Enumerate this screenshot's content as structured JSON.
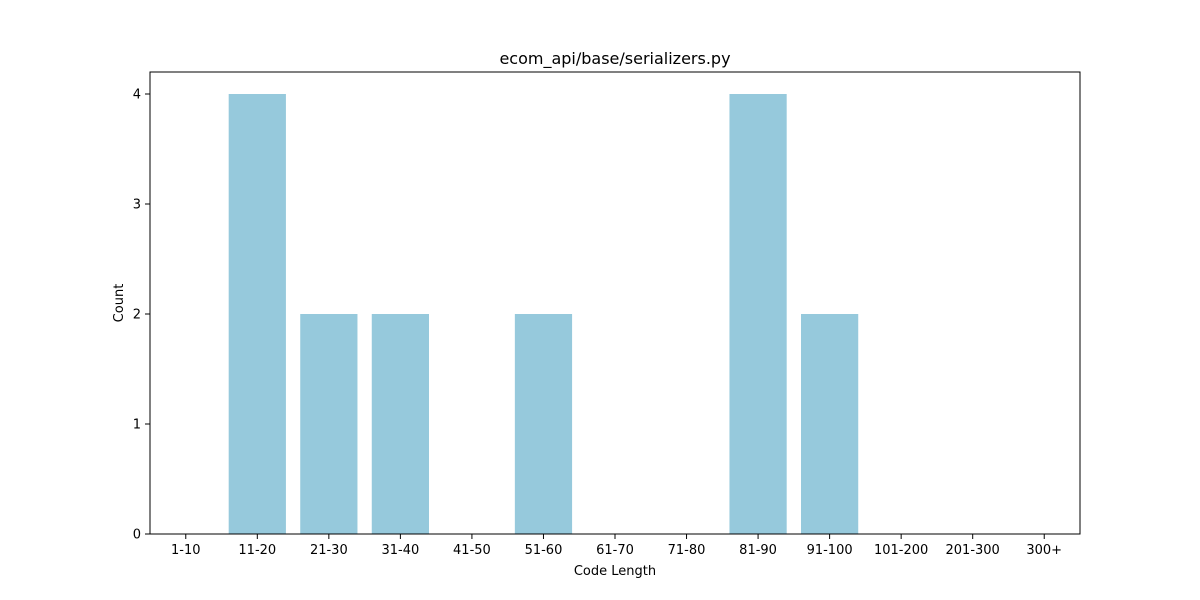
{
  "chart_data": {
    "type": "bar",
    "title": "ecom_api/base/serializers.py",
    "xlabel": "Code Length",
    "ylabel": "Count",
    "categories": [
      "1-10",
      "11-20",
      "21-30",
      "31-40",
      "41-50",
      "51-60",
      "61-70",
      "71-80",
      "81-90",
      "91-100",
      "101-200",
      "201-300",
      "300+"
    ],
    "values": [
      0,
      4,
      2,
      2,
      0,
      2,
      0,
      0,
      4,
      2,
      0,
      0,
      0
    ],
    "ylim": [
      0,
      4.2
    ],
    "yticks": [
      0,
      1,
      2,
      3,
      4
    ],
    "grid": false,
    "bar_color": "#96c9dc"
  }
}
